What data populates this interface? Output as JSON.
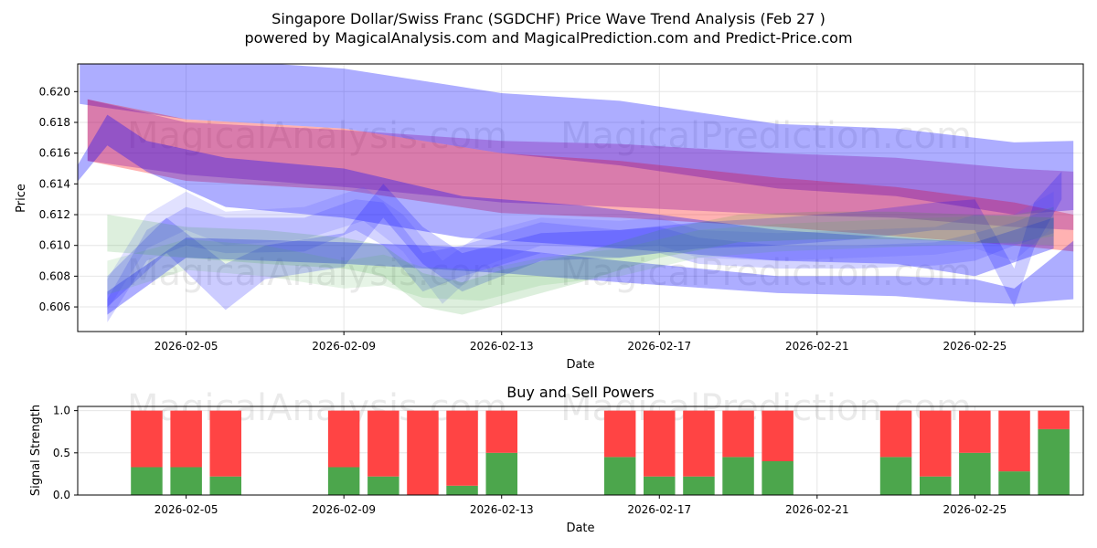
{
  "chart_data": [
    {
      "type": "area",
      "title": "Singapore Dollar/Swiss Franc (SGDCHF) Price Wave Trend Analysis (Feb 27 )",
      "subtitle": "powered by MagicalAnalysis.com and MagicalPrediction.com and Predict-Price.com",
      "xlabel": "Date",
      "ylabel": "Price",
      "ylim": [
        0.6044,
        0.6218
      ],
      "xlim_days": [
        2.25,
        27.75
      ],
      "x_ticks": [
        {
          "day": 5,
          "label": "2026-02-05"
        },
        {
          "day": 9,
          "label": "2026-02-09"
        },
        {
          "day": 13,
          "label": "2026-02-13"
        },
        {
          "day": 17,
          "label": "2026-02-17"
        },
        {
          "day": 21,
          "label": "2026-02-21"
        },
        {
          "day": 25,
          "label": "2026-02-25"
        }
      ],
      "y_ticks": [
        {
          "value": 0.606,
          "label": "0.606"
        },
        {
          "value": 0.608,
          "label": "0.608"
        },
        {
          "value": 0.61,
          "label": "0.610"
        },
        {
          "value": 0.612,
          "label": "0.612"
        },
        {
          "value": 0.614,
          "label": "0.614"
        },
        {
          "value": 0.616,
          "label": "0.616"
        },
        {
          "value": 0.618,
          "label": "0.618"
        },
        {
          "value": 0.62,
          "label": "0.620"
        }
      ],
      "grid": true,
      "watermarks": [
        "MagicalAnalysis.com",
        "MagicalPrediction.com"
      ],
      "series": [
        {
          "name": "upper-band",
          "color": "#0000ff",
          "opacity": 0.32,
          "x": [
            2.3,
            5,
            9,
            13,
            16,
            20,
            23,
            26,
            27.5
          ],
          "upper": [
            0.6222,
            0.6222,
            0.6215,
            0.6199,
            0.6194,
            0.6179,
            0.6176,
            0.6167,
            0.6168
          ],
          "lower": [
            0.6192,
            0.6182,
            0.6176,
            0.616,
            0.6152,
            0.6137,
            0.6132,
            0.612,
            0.6123
          ]
        },
        {
          "name": "red-band",
          "color": "#ff0000",
          "opacity": 0.3,
          "x": [
            2.5,
            5,
            9,
            13,
            16,
            20,
            23,
            26,
            27.5
          ],
          "upper": [
            0.6195,
            0.6182,
            0.6176,
            0.616,
            0.6155,
            0.6144,
            0.6138,
            0.6128,
            0.612
          ],
          "lower": [
            0.6155,
            0.6142,
            0.6136,
            0.6121,
            0.6118,
            0.6112,
            0.6106,
            0.61,
            0.6096
          ]
        },
        {
          "name": "purple-band",
          "color": "#8000a0",
          "opacity": 0.3,
          "x": [
            2.5,
            5,
            9,
            13,
            16,
            20,
            23,
            26,
            27.5
          ],
          "upper": [
            0.6195,
            0.618,
            0.6175,
            0.6168,
            0.6166,
            0.616,
            0.6157,
            0.615,
            0.6148
          ],
          "lower": [
            0.6155,
            0.6146,
            0.6138,
            0.6128,
            0.6125,
            0.612,
            0.6118,
            0.6112,
            0.611
          ]
        },
        {
          "name": "mid-blue-band",
          "color": "#0000ff",
          "opacity": 0.32,
          "x": [
            2.2,
            3,
            4,
            6,
            9,
            12,
            15,
            17,
            20,
            23,
            25,
            27
          ],
          "upper": [
            0.615,
            0.6185,
            0.6168,
            0.6157,
            0.615,
            0.6132,
            0.6126,
            0.612,
            0.611,
            0.6105,
            0.6102,
            0.6118
          ],
          "lower": [
            0.614,
            0.6165,
            0.6148,
            0.6125,
            0.6118,
            0.6105,
            0.61,
            0.6096,
            0.609,
            0.6088,
            0.608,
            0.6098
          ]
        },
        {
          "name": "lower-blue-band",
          "color": "#0000ff",
          "opacity": 0.32,
          "x": [
            3,
            5,
            9,
            13,
            16,
            20,
            23,
            25,
            26,
            27.5
          ],
          "upper": [
            0.607,
            0.6105,
            0.6102,
            0.6098,
            0.609,
            0.608,
            0.608,
            0.6078,
            0.6072,
            0.6103
          ],
          "lower": [
            0.6055,
            0.6092,
            0.6088,
            0.6082,
            0.6076,
            0.6069,
            0.6067,
            0.6063,
            0.6062,
            0.6065
          ]
        },
        {
          "name": "wave-blue-1",
          "color": "#3b3bff",
          "opacity": 0.22,
          "x": [
            3,
            4,
            5,
            6,
            8,
            9.3,
            10,
            11,
            12,
            14,
            16,
            17,
            18,
            20,
            22,
            24,
            25,
            26,
            27
          ],
          "upper": [
            0.6065,
            0.611,
            0.6125,
            0.6118,
            0.6118,
            0.613,
            0.6128,
            0.6095,
            0.61,
            0.6115,
            0.611,
            0.6112,
            0.6105,
            0.61,
            0.61,
            0.6102,
            0.6108,
            0.6115,
            0.6125
          ],
          "lower": [
            0.605,
            0.609,
            0.61,
            0.6095,
            0.6096,
            0.611,
            0.61,
            0.607,
            0.608,
            0.6095,
            0.6092,
            0.6095,
            0.6088,
            0.6085,
            0.6085,
            0.6087,
            0.609,
            0.61,
            0.6108
          ]
        },
        {
          "name": "wave-blue-2",
          "color": "#5a5aff",
          "opacity": 0.18,
          "x": [
            3,
            4,
            5,
            6,
            8,
            9.5,
            10.5,
            11.5,
            12.5,
            14,
            16,
            17,
            18,
            20,
            22,
            24,
            25,
            26,
            27
          ],
          "upper": [
            0.6078,
            0.612,
            0.6135,
            0.6122,
            0.6125,
            0.6138,
            0.612,
            0.609,
            0.6108,
            0.6118,
            0.6116,
            0.6118,
            0.611,
            0.6108,
            0.611,
            0.6112,
            0.612,
            0.612,
            0.6135
          ],
          "lower": [
            0.6058,
            0.6098,
            0.611,
            0.61,
            0.6104,
            0.6116,
            0.6096,
            0.6062,
            0.6086,
            0.61,
            0.6098,
            0.61,
            0.6092,
            0.609,
            0.6092,
            0.6094,
            0.6098,
            0.609,
            0.6112
          ]
        },
        {
          "name": "wave-blue-3",
          "color": "#0000ff",
          "opacity": 0.2,
          "x": [
            3,
            4.5,
            6,
            7,
            9,
            10,
            11,
            12,
            14,
            16,
            18,
            20,
            22,
            24,
            25,
            26,
            26.5,
            27.2
          ],
          "upper": [
            0.608,
            0.6118,
            0.6088,
            0.61,
            0.6108,
            0.614,
            0.6112,
            0.6095,
            0.6108,
            0.611,
            0.6115,
            0.6118,
            0.6122,
            0.6128,
            0.613,
            0.6085,
            0.6128,
            0.6148
          ],
          "lower": [
            0.606,
            0.6095,
            0.6058,
            0.6078,
            0.6086,
            0.6118,
            0.6088,
            0.607,
            0.609,
            0.6092,
            0.6098,
            0.61,
            0.6104,
            0.611,
            0.611,
            0.606,
            0.6098,
            0.613
          ]
        },
        {
          "name": "wave-green-1",
          "color": "#2e9e2e",
          "opacity": 0.16,
          "x": [
            3,
            5,
            7,
            9,
            10,
            11,
            12,
            13,
            15,
            17,
            19,
            21,
            23,
            25,
            27
          ],
          "upper": [
            0.612,
            0.6112,
            0.611,
            0.6105,
            0.61,
            0.6082,
            0.6076,
            0.6084,
            0.6095,
            0.611,
            0.612,
            0.6122,
            0.6122,
            0.612,
            0.6118
          ],
          "lower": [
            0.6096,
            0.6092,
            0.6088,
            0.6085,
            0.608,
            0.606,
            0.6055,
            0.6062,
            0.6076,
            0.6092,
            0.6102,
            0.6104,
            0.6104,
            0.6102,
            0.61
          ]
        },
        {
          "name": "wave-green-2",
          "color": "#4caf50",
          "opacity": 0.14,
          "x": [
            3,
            5,
            7,
            9,
            10,
            11,
            12.5,
            14,
            16,
            18,
            20,
            22,
            24,
            26,
            27
          ],
          "upper": [
            0.609,
            0.6104,
            0.61,
            0.609,
            0.6094,
            0.6086,
            0.6084,
            0.6092,
            0.6098,
            0.611,
            0.6114,
            0.6116,
            0.6118,
            0.612,
            0.6125
          ],
          "lower": [
            0.6068,
            0.6084,
            0.608,
            0.6072,
            0.6074,
            0.6066,
            0.6064,
            0.6074,
            0.608,
            0.6092,
            0.6096,
            0.6098,
            0.61,
            0.6102,
            0.6106
          ]
        }
      ]
    },
    {
      "type": "bar",
      "title": "Buy and Sell Powers",
      "xlabel": "Date",
      "ylabel": "Signal Strength",
      "ylim": [
        0,
        1.05
      ],
      "xlim_days": [
        2.25,
        27.75
      ],
      "x_ticks": [
        {
          "day": 5,
          "label": "2026-02-05"
        },
        {
          "day": 9,
          "label": "2026-02-09"
        },
        {
          "day": 13,
          "label": "2026-02-13"
        },
        {
          "day": 17,
          "label": "2026-02-17"
        },
        {
          "day": 21,
          "label": "2026-02-21"
        },
        {
          "day": 25,
          "label": "2026-02-25"
        }
      ],
      "y_ticks": [
        {
          "value": 0.0,
          "label": "0.0"
        },
        {
          "value": 0.5,
          "label": "0.5"
        },
        {
          "value": 1.0,
          "label": "1.0"
        }
      ],
      "grid": true,
      "watermarks": [
        "MagicalAnalysis.com",
        "MagicalPrediction.com"
      ],
      "buy_color": "#4ca64c",
      "sell_color": "#ff4444",
      "series": [
        {
          "name": "Buy",
          "days": [
            4,
            5,
            6,
            9,
            10,
            11,
            12,
            13,
            16,
            17,
            18,
            19,
            20,
            23,
            24,
            25,
            26,
            27
          ],
          "values": [
            0.33,
            0.33,
            0.22,
            0.33,
            0.22,
            0.0,
            0.11,
            0.5,
            0.45,
            0.22,
            0.22,
            0.45,
            0.4,
            0.45,
            0.22,
            0.5,
            0.28,
            0.78
          ]
        },
        {
          "name": "Sell",
          "days": [
            4,
            5,
            6,
            9,
            10,
            11,
            12,
            13,
            16,
            17,
            18,
            19,
            20,
            23,
            24,
            25,
            26,
            27
          ],
          "values": [
            0.67,
            0.67,
            0.78,
            0.67,
            0.78,
            1.0,
            0.89,
            0.5,
            0.55,
            0.78,
            0.78,
            0.55,
            0.6,
            0.55,
            0.78,
            0.5,
            0.72,
            0.22
          ]
        }
      ]
    }
  ]
}
